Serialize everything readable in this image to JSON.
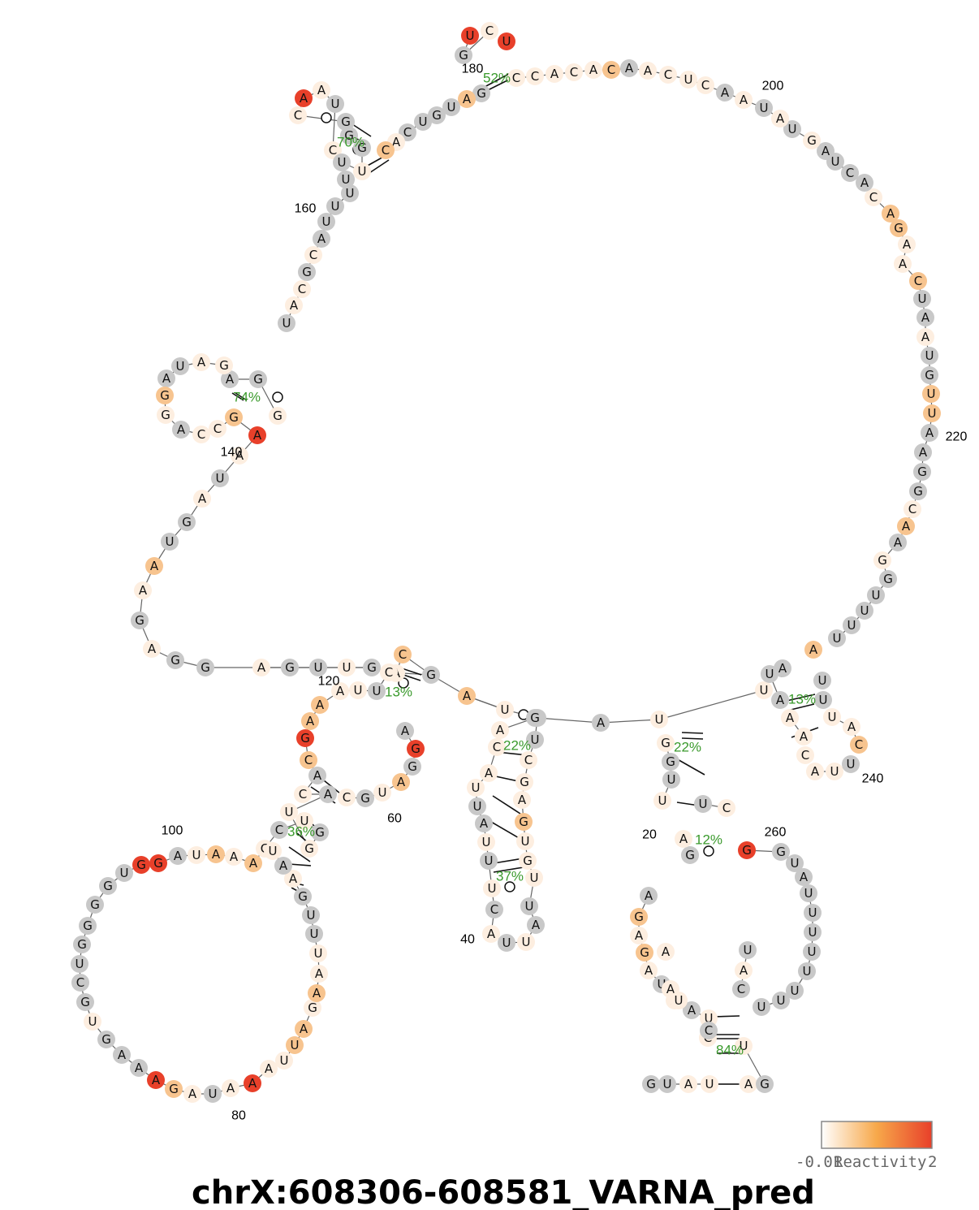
{
  "title": "chrX:608306-608581_VARNA_pred",
  "colorbar": {
    "label": "Reactivity",
    "min_label": "-0.01",
    "max_label": "2",
    "colors": [
      "#ffffff",
      "#f7a84a",
      "#e8402a"
    ]
  },
  "colors": {
    "none": "#c8c8c8",
    "low": "#fdeee0",
    "mid": "#f7c48f",
    "high": "#e8402a",
    "pct_text": "#3a9a2c",
    "backbone": "#666666"
  },
  "index_labels": [
    "20",
    "40",
    "60",
    "80",
    "100",
    "120",
    "140",
    "160",
    "180",
    "200",
    "220",
    "240",
    "260"
  ],
  "helix_percentages": [
    "52%",
    "70%",
    "74%",
    "13%",
    "36%",
    "22%",
    "37%",
    "22%",
    "12%",
    "84%",
    "13%"
  ],
  "sequence_segments": [
    {
      "name": "segment-3prime-tail",
      "letters": [
        "G",
        "U",
        "A",
        "U",
        "A",
        "G"
      ]
    },
    {
      "name": "segment-loop-260",
      "letters": [
        "U",
        "C",
        "A",
        "U",
        "U",
        "U",
        "U",
        "U",
        "U",
        "U",
        "U",
        "U",
        "A",
        "U",
        "G",
        "G",
        "U",
        "A",
        "A",
        "U",
        "A",
        "G",
        "A",
        "G",
        "A"
      ]
    },
    {
      "name": "segment-stem-20",
      "letters": [
        "C",
        "C",
        "U",
        "C",
        "A",
        "U",
        "A",
        "U",
        "U",
        "G",
        "G",
        "G",
        "A"
      ]
    },
    {
      "name": "segment-hairpin-240",
      "letters": [
        "A",
        "U",
        "U",
        "A",
        "C",
        "U",
        "A",
        "A",
        "C",
        "A",
        "U",
        "A",
        "U",
        "U"
      ]
    },
    {
      "name": "segment-right-arc",
      "letters": [
        "A",
        "U",
        "U",
        "U",
        "U",
        "U",
        "G",
        "G",
        "A",
        "A",
        "C",
        "G",
        "G",
        "A",
        "A",
        "U",
        "U",
        "G",
        "U",
        "A",
        "A",
        "U",
        "C",
        "A",
        "A",
        "G",
        "A",
        "C",
        "A",
        "C",
        "U",
        "A",
        "G",
        "U",
        "A",
        "U",
        "A",
        "A",
        "C",
        "U",
        "C",
        "A",
        "A",
        "C",
        "A"
      ]
    },
    {
      "name": "segment-hairpin-180",
      "letters": [
        "C",
        "A",
        "C",
        "C",
        "U",
        "G",
        "C"
      ]
    },
    {
      "name": "segment-top-arc",
      "letters": [
        "G",
        "A",
        "U",
        "G",
        "U",
        "C",
        "A",
        "C"
      ]
    },
    {
      "name": "segment-hairpin-170",
      "letters": [
        "U",
        "C",
        "U",
        "A",
        "A",
        "C",
        "G",
        "G",
        "G",
        "U"
      ]
    },
    {
      "name": "segment-left-descent",
      "letters": [
        "U",
        "U",
        "U",
        "U",
        "U",
        "A",
        "C",
        "G",
        "C",
        "A",
        "U"
      ]
    },
    {
      "name": "segment-hairpin-145",
      "letters": [
        "G",
        "G",
        "A",
        "G",
        "A",
        "U",
        "A",
        "G",
        "G",
        "A",
        "C",
        "C",
        "G"
      ]
    },
    {
      "name": "segment-left-loop",
      "letters": [
        "A",
        "A",
        "U",
        "A",
        "G",
        "U",
        "A",
        "A",
        "G",
        "A"
      ]
    },
    {
      "name": "segment-bottom-left-line",
      "letters": [
        "G",
        "G",
        "A",
        "G",
        "U",
        "U",
        "G",
        "A",
        "C"
      ]
    },
    {
      "name": "segment-hairpin-120",
      "letters": [
        "G",
        "C",
        "U",
        "U",
        "A",
        "A",
        "A"
      ]
    },
    {
      "name": "segment-stem-100",
      "letters": [
        "G",
        "C",
        "A",
        "C",
        "A",
        "U",
        "G",
        "G",
        "U",
        "C",
        "C"
      ]
    },
    {
      "name": "segment-big-loop-left",
      "letters": [
        "A",
        "A",
        "A",
        "U",
        "A",
        "G",
        "G",
        "U",
        "G",
        "G",
        "G",
        "G",
        "U",
        "C",
        "G",
        "U",
        "G",
        "A",
        "A",
        "A",
        "G",
        "A",
        "U",
        "A",
        "A",
        "A",
        "U",
        "U",
        "A",
        "G",
        "A",
        "A",
        "U",
        "U",
        "U",
        "G",
        "A",
        "A",
        "U"
      ]
    },
    {
      "name": "segment-inner-loop-60",
      "letters": [
        "A",
        "G",
        "G",
        "A",
        "U",
        "G",
        "C"
      ]
    },
    {
      "name": "segment-hairpin-40",
      "letters": [
        "A",
        "U",
        "G",
        "U",
        "C",
        "G",
        "A",
        "G",
        "U",
        "G",
        "U",
        "U",
        "A",
        "U",
        "U",
        "A",
        "C",
        "U",
        "U",
        "U",
        "A",
        "U",
        "U",
        "A",
        "C",
        "A",
        "G"
      ]
    },
    {
      "name": "segment-linker",
      "letters": [
        "A",
        "U"
      ]
    }
  ]
}
